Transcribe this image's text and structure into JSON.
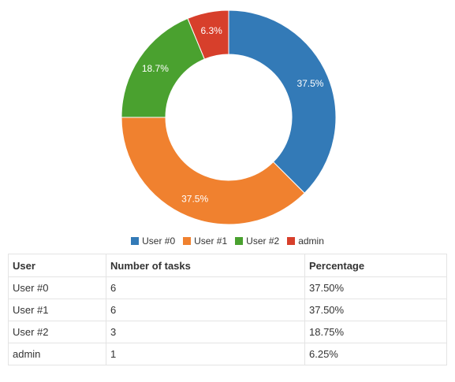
{
  "chart_data": {
    "type": "pie",
    "donut": true,
    "categories": [
      "User #0",
      "User #1",
      "User #2",
      "admin"
    ],
    "values": [
      6,
      6,
      3,
      1
    ],
    "slice_labels": [
      "37.5%",
      "37.5%",
      "18.7%",
      "6.3%"
    ],
    "colors": [
      "#337ab7",
      "#f0812f",
      "#4aa12f",
      "#d73f2b"
    ],
    "legend_placement": "bottom"
  },
  "table": {
    "headers": [
      "User",
      "Number of tasks",
      "Percentage"
    ],
    "rows": [
      [
        "User #0",
        "6",
        "37.50%"
      ],
      [
        "User #1",
        "6",
        "37.50%"
      ],
      [
        "User #2",
        "3",
        "18.75%"
      ],
      [
        "admin",
        "1",
        "6.25%"
      ]
    ]
  }
}
